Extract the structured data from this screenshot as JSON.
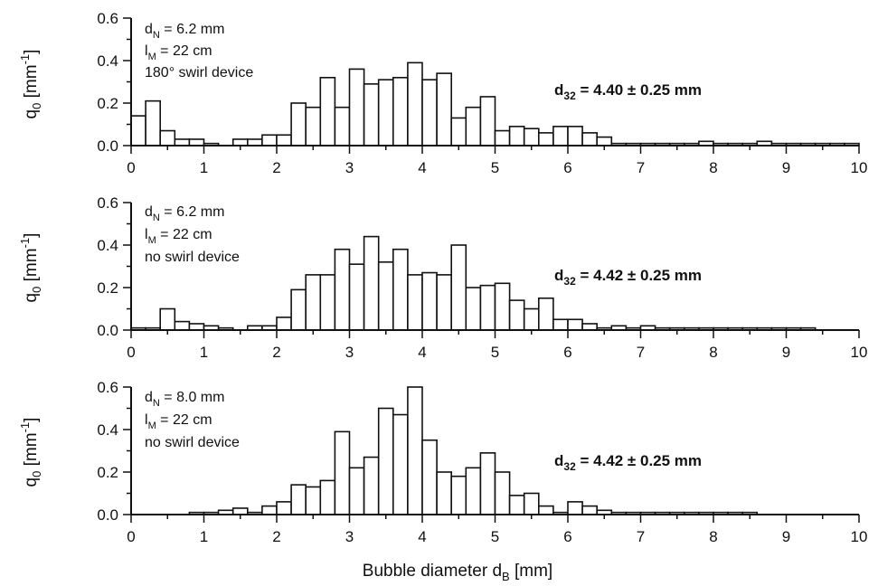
{
  "chart_data": [
    {
      "type": "bar",
      "xlabel": "",
      "ylabel_main": "q",
      "ylabel_sub": "0",
      "ylabel_unit": "[mm",
      "ylabel_exp": "-1",
      "ylabel_close": "]",
      "xlim": [
        0,
        10
      ],
      "ylim": [
        0,
        0.6
      ],
      "xticks": [
        "0",
        "1",
        "2",
        "3",
        "4",
        "5",
        "6",
        "7",
        "8",
        "9",
        "10"
      ],
      "yticks": [
        "0.0",
        "0.2",
        "0.4",
        "0.6"
      ],
      "bin_width": 0.2,
      "bin_start": 0.1,
      "annotation": {
        "line1_main": "d",
        "line1_sub": "N",
        "line1_value": " = 6.2 mm",
        "line2_main": "l",
        "line2_sub": "M",
        "line2_value": " = 22 cm",
        "line3": "180° swirl device"
      },
      "d32": {
        "main": "d",
        "sub": "32",
        "value": " = 4.40 ± 0.25 mm"
      },
      "values": [
        0.14,
        0.21,
        0.07,
        0.03,
        0.03,
        0.01,
        0.0,
        0.03,
        0.03,
        0.05,
        0.05,
        0.2,
        0.18,
        0.32,
        0.18,
        0.36,
        0.29,
        0.31,
        0.32,
        0.39,
        0.31,
        0.34,
        0.13,
        0.18,
        0.23,
        0.07,
        0.09,
        0.08,
        0.06,
        0.09,
        0.09,
        0.06,
        0.04,
        0.01,
        0.01,
        0.01,
        0.01,
        0.01,
        0.01,
        0.02,
        0.01,
        0.01,
        0.01,
        0.02,
        0.01,
        0.01,
        0.01,
        0.01,
        0.01,
        0.01
      ]
    },
    {
      "type": "bar",
      "xlabel": "",
      "ylabel_main": "q",
      "ylabel_sub": "0",
      "ylabel_unit": "[mm",
      "ylabel_exp": "-1",
      "ylabel_close": "]",
      "xlim": [
        0,
        10
      ],
      "ylim": [
        0,
        0.6
      ],
      "xticks": [
        "0",
        "1",
        "2",
        "3",
        "4",
        "5",
        "6",
        "7",
        "8",
        "9",
        "10"
      ],
      "yticks": [
        "0.0",
        "0.2",
        "0.4",
        "0.6"
      ],
      "bin_width": 0.2,
      "bin_start": 0.1,
      "annotation": {
        "line1_main": "d",
        "line1_sub": "N",
        "line1_value": " = 6.2 mm",
        "line2_main": "l",
        "line2_sub": "M",
        "line2_value": " = 22 cm",
        "line3": "no swirl device"
      },
      "d32": {
        "main": "d",
        "sub": "32",
        "value": " = 4.42 ± 0.25 mm"
      },
      "values": [
        0.01,
        0.01,
        0.1,
        0.04,
        0.03,
        0.02,
        0.01,
        0.0,
        0.02,
        0.02,
        0.06,
        0.19,
        0.26,
        0.26,
        0.38,
        0.31,
        0.44,
        0.32,
        0.38,
        0.26,
        0.27,
        0.26,
        0.4,
        0.2,
        0.21,
        0.22,
        0.14,
        0.1,
        0.15,
        0.05,
        0.05,
        0.03,
        0.01,
        0.02,
        0.01,
        0.02,
        0.01,
        0.01,
        0.01,
        0.01,
        0.01,
        0.01,
        0.01,
        0.01,
        0.01,
        0.01,
        0.01,
        0.0,
        0.0,
        0.0
      ]
    },
    {
      "type": "bar",
      "xlabel_main": "Bubble diameter d",
      "xlabel_sub": "B",
      "xlabel_unit": " [mm]",
      "ylabel_main": "q",
      "ylabel_sub": "0",
      "ylabel_unit": "[mm",
      "ylabel_exp": "-1",
      "ylabel_close": "]",
      "xlim": [
        0,
        10
      ],
      "ylim": [
        0,
        0.6
      ],
      "xticks": [
        "0",
        "1",
        "2",
        "3",
        "4",
        "5",
        "6",
        "7",
        "8",
        "9",
        "10"
      ],
      "yticks": [
        "0.0",
        "0.2",
        "0.4",
        "0.6"
      ],
      "bin_width": 0.2,
      "bin_start": 0.1,
      "annotation": {
        "line1_main": "d",
        "line1_sub": "N",
        "line1_value": " = 8.0 mm",
        "line2_main": "l",
        "line2_sub": "M",
        "line2_value": " = 22 cm",
        "line3": "no swirl device"
      },
      "d32": {
        "main": "d",
        "sub": "32",
        "value": " = 4.42 ± 0.25 mm"
      },
      "values": [
        0.0,
        0.0,
        0.0,
        0.0,
        0.01,
        0.01,
        0.02,
        0.03,
        0.01,
        0.04,
        0.06,
        0.14,
        0.13,
        0.16,
        0.39,
        0.22,
        0.27,
        0.5,
        0.47,
        0.6,
        0.35,
        0.2,
        0.18,
        0.22,
        0.29,
        0.2,
        0.09,
        0.1,
        0.04,
        0.01,
        0.06,
        0.04,
        0.02,
        0.01,
        0.01,
        0.01,
        0.01,
        0.01,
        0.01,
        0.01,
        0.01,
        0.01,
        0.01,
        0.0,
        0.0,
        0.0,
        0.0,
        0.0,
        0.0,
        0.0
      ]
    }
  ]
}
